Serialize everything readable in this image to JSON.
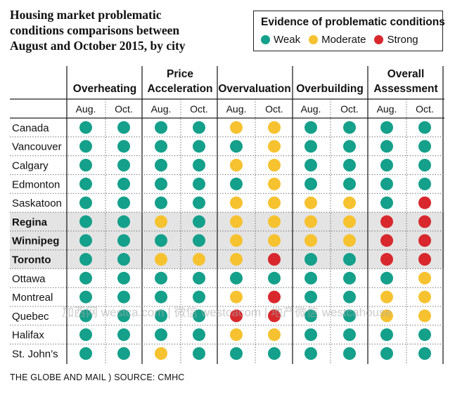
{
  "title_lines": [
    "Housing market problematic",
    "conditions comparisons between",
    "August and October 2015, by city"
  ],
  "legend": {
    "title": "Evidence of problematic conditions",
    "items": [
      {
        "label": "Weak",
        "color": "#14a08a"
      },
      {
        "label": "Moderate",
        "color": "#f6c230"
      },
      {
        "label": "Strong",
        "color": "#d8282d"
      }
    ]
  },
  "source": "THE GLOBE AND MAIL ) SOURCE: CMHC",
  "watermark": "加西网 westca.com | 微信 westcacom | 地产微信 westcahouse",
  "chart_data": {
    "type": "table",
    "groups": [
      {
        "label_lines": [
          "Overheating"
        ]
      },
      {
        "label_lines": [
          "Price",
          "Acceleration"
        ]
      },
      {
        "label_lines": [
          "Overvaluation"
        ]
      },
      {
        "label_lines": [
          "Overbuilding"
        ]
      },
      {
        "label_lines": [
          "Overall",
          "Assessment"
        ]
      }
    ],
    "subcolumns": [
      "Aug.",
      "Oct."
    ],
    "rows": [
      {
        "city": "Canada",
        "bold": false,
        "highlight": false,
        "values": [
          "W",
          "W",
          "W",
          "W",
          "M",
          "M",
          "W",
          "W",
          "W",
          "W"
        ]
      },
      {
        "city": "Vancouver",
        "bold": false,
        "highlight": false,
        "values": [
          "W",
          "W",
          "W",
          "W",
          "W",
          "M",
          "W",
          "W",
          "W",
          "W"
        ]
      },
      {
        "city": "Calgary",
        "bold": false,
        "highlight": false,
        "values": [
          "W",
          "W",
          "W",
          "W",
          "M",
          "M",
          "W",
          "W",
          "W",
          "W"
        ]
      },
      {
        "city": "Edmonton",
        "bold": false,
        "highlight": false,
        "values": [
          "W",
          "W",
          "W",
          "W",
          "W",
          "M",
          "W",
          "W",
          "W",
          "W"
        ]
      },
      {
        "city": "Saskatoon",
        "bold": false,
        "highlight": false,
        "values": [
          "W",
          "W",
          "W",
          "W",
          "M",
          "M",
          "M",
          "M",
          "W",
          "S"
        ]
      },
      {
        "city": "Regina",
        "bold": true,
        "highlight": true,
        "values": [
          "W",
          "W",
          "M",
          "W",
          "M",
          "M",
          "M",
          "M",
          "S",
          "S"
        ]
      },
      {
        "city": "Winnipeg",
        "bold": true,
        "highlight": true,
        "values": [
          "W",
          "W",
          "W",
          "W",
          "M",
          "M",
          "M",
          "M",
          "S",
          "S"
        ]
      },
      {
        "city": "Toronto",
        "bold": true,
        "highlight": true,
        "values": [
          "W",
          "W",
          "M",
          "M",
          "M",
          "S",
          "W",
          "W",
          "S",
          "S"
        ]
      },
      {
        "city": "Ottawa",
        "bold": false,
        "highlight": false,
        "values": [
          "W",
          "W",
          "W",
          "W",
          "W",
          "W",
          "W",
          "W",
          "W",
          "M"
        ]
      },
      {
        "city": "Montreal",
        "bold": false,
        "highlight": false,
        "values": [
          "W",
          "W",
          "W",
          "W",
          "M",
          "S",
          "W",
          "W",
          "M",
          "M"
        ]
      },
      {
        "city": "Quebec",
        "bold": false,
        "highlight": false,
        "values": [
          "W",
          "W",
          "W",
          "W",
          "S",
          "S",
          "W",
          "W",
          "M",
          "M"
        ]
      },
      {
        "city": "Halifax",
        "bold": false,
        "highlight": false,
        "values": [
          "W",
          "W",
          "W",
          "W",
          "M",
          "M",
          "W",
          "W",
          "W",
          "W"
        ]
      },
      {
        "city": "St. John’s",
        "bold": false,
        "highlight": false,
        "values": [
          "W",
          "W",
          "M",
          "W",
          "W",
          "W",
          "W",
          "W",
          "W",
          "W"
        ]
      }
    ],
    "value_key": {
      "W": "Weak",
      "M": "Moderate",
      "S": "Strong"
    }
  }
}
